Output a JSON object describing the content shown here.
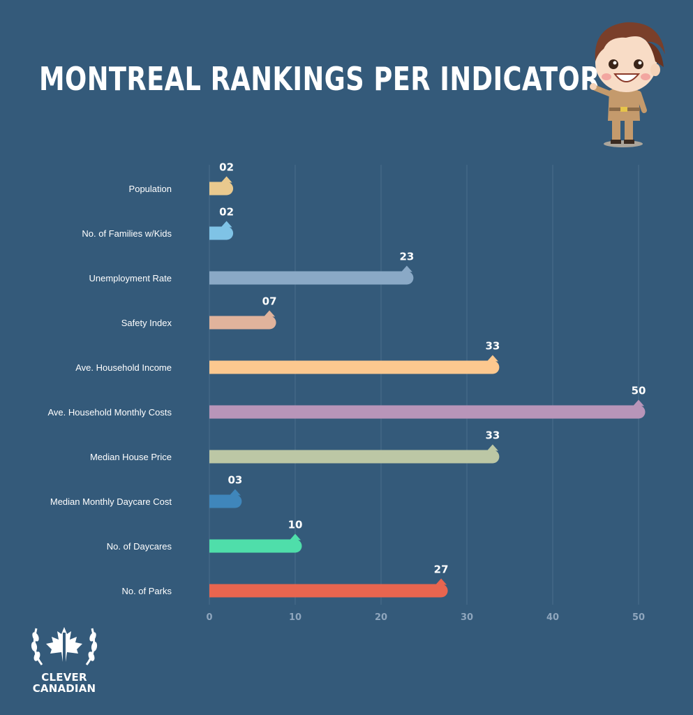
{
  "header": {
    "title": "MONTREAL RANKINGS PER INDICATOR"
  },
  "brand": {
    "line1": "CLEVER",
    "line2": "CANADIAN"
  },
  "chart_data": {
    "type": "bar",
    "orientation": "horizontal",
    "title": "MONTREAL RANKINGS PER INDICATOR",
    "xlabel": "",
    "ylabel": "",
    "xlim": [
      0,
      50
    ],
    "x_ticks": [
      0,
      10,
      20,
      30,
      40,
      50
    ],
    "grid": true,
    "categories": [
      "Population",
      "No. of Families w/Kids",
      "Unemployment Rate",
      "Safety Index",
      "Ave. Household Income",
      "Ave. Household Monthly Costs",
      "Median House Price",
      "Median Monthly Daycare Cost",
      "No. of Daycares",
      "No. of Parks"
    ],
    "values": [
      2,
      2,
      23,
      7,
      33,
      50,
      33,
      3,
      10,
      27
    ],
    "value_labels": [
      "02",
      "02",
      "23",
      "07",
      "33",
      "50",
      "33",
      "03",
      "10",
      "27"
    ],
    "colors": [
      "#e9c98e",
      "#7fc3e6",
      "#8aa9c6",
      "#e0b39c",
      "#fcc88f",
      "#b895b9",
      "#bcc7a5",
      "#3f86bb",
      "#4fdeaa",
      "#e8654f"
    ]
  }
}
